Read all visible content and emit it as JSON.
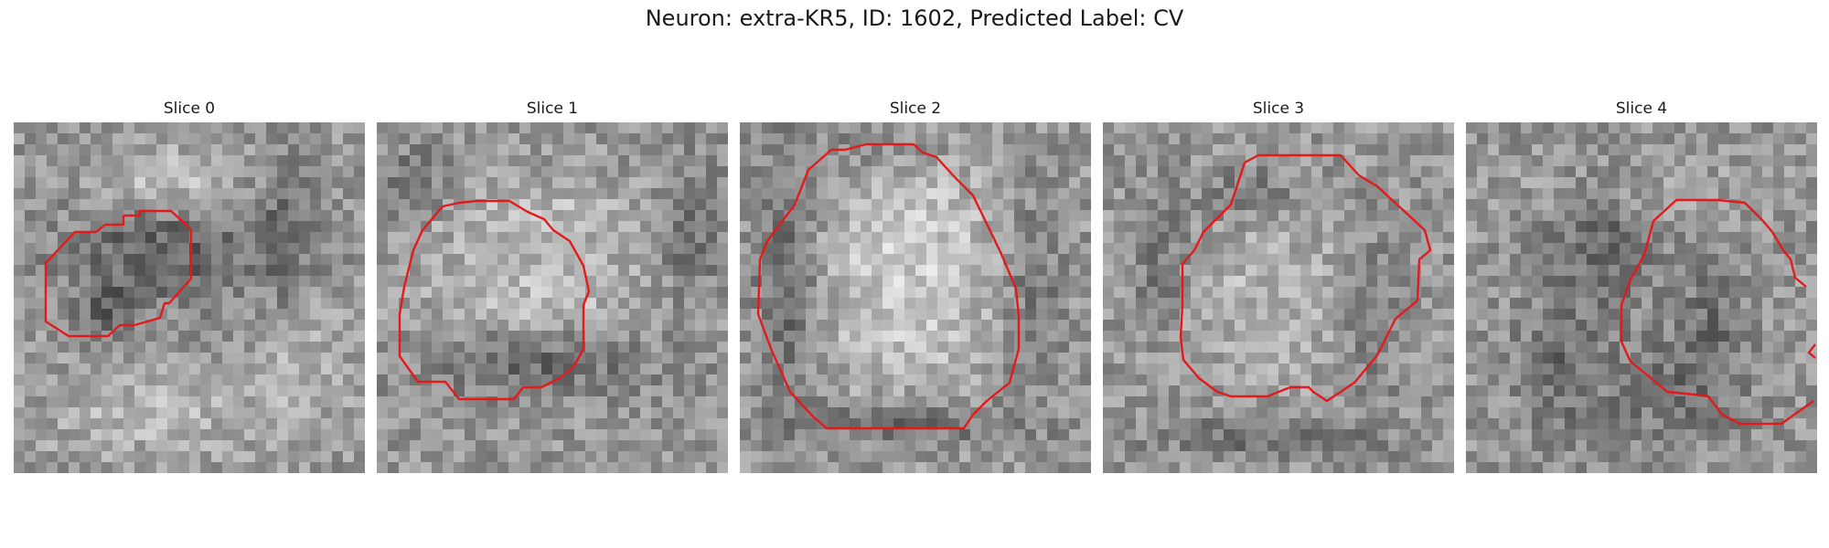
{
  "figure": {
    "title": "Neuron: extra-KR5, ID: 1602, Predicted Label: CV"
  },
  "contour_color": "#e31a1c",
  "panels": [
    {
      "title": "Slice 0",
      "seed": 11
    },
    {
      "title": "Slice 1",
      "seed": 23
    },
    {
      "title": "Slice 2",
      "seed": 37
    },
    {
      "title": "Slice 3",
      "seed": 51
    },
    {
      "title": "Slice 4",
      "seed": 67
    }
  ]
}
